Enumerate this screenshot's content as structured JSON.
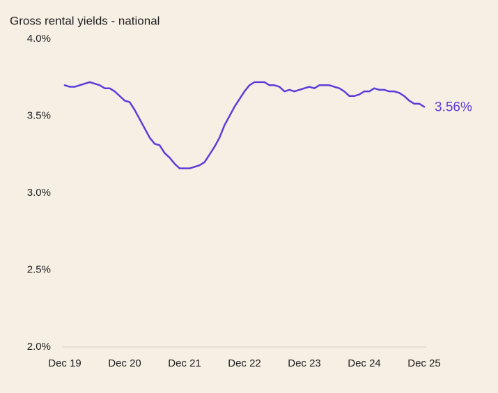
{
  "chart_data": {
    "type": "line",
    "title": "Gross rental yields - national",
    "categories": [
      "Dec 19",
      null,
      null,
      null,
      null,
      null,
      null,
      null,
      null,
      null,
      null,
      null,
      "Dec 20",
      null,
      null,
      null,
      null,
      null,
      null,
      null,
      null,
      null,
      null,
      null,
      "Dec 21",
      null,
      null,
      null,
      null,
      null,
      null,
      null,
      null,
      null,
      null,
      null,
      "Dec 22",
      null,
      null,
      null,
      null,
      null,
      null,
      null,
      null,
      null,
      null,
      null,
      "Dec 23",
      null,
      null,
      null,
      null,
      null,
      null,
      null,
      null,
      null,
      null,
      null,
      "Dec 24",
      null,
      null,
      null,
      null,
      null,
      null,
      null,
      null,
      null,
      null,
      null,
      "Dec 25"
    ],
    "series": [
      {
        "color": "#5a3dd8",
        "values": [
          3.7,
          3.69,
          3.69,
          3.7,
          3.71,
          3.72,
          3.71,
          3.7,
          3.68,
          3.68,
          3.66,
          3.63,
          3.6,
          3.59,
          3.54,
          3.48,
          3.42,
          3.36,
          3.32,
          3.31,
          3.26,
          3.23,
          3.19,
          3.16,
          3.16,
          3.16,
          3.17,
          3.18,
          3.2,
          3.25,
          3.3,
          3.36,
          3.44,
          3.5,
          3.56,
          3.61,
          3.66,
          3.7,
          3.72,
          3.72,
          3.72,
          3.7,
          3.7,
          3.69,
          3.66,
          3.67,
          3.66,
          3.67,
          3.68,
          3.69,
          3.68,
          3.7,
          3.7,
          3.7,
          3.69,
          3.68,
          3.66,
          3.63,
          3.63,
          3.64,
          3.66,
          3.66,
          3.68,
          3.67,
          3.67,
          3.66,
          3.66,
          3.65,
          3.63,
          3.6,
          3.58,
          3.58,
          3.56
        ],
        "value_labels": [
          null,
          null,
          null,
          null,
          null,
          null,
          null,
          null,
          null,
          null,
          null,
          null,
          null,
          null,
          null,
          null,
          null,
          null,
          null,
          null,
          null,
          null,
          null,
          null,
          null,
          null,
          null,
          null,
          null,
          null,
          null,
          null,
          null,
          null,
          null,
          null,
          null,
          null,
          null,
          null,
          null,
          null,
          null,
          null,
          null,
          null,
          null,
          null,
          null,
          null,
          null,
          null,
          null,
          null,
          null,
          null,
          null,
          null,
          null,
          null,
          null,
          null,
          null,
          null,
          null,
          null,
          null,
          null,
          null,
          null,
          null,
          null,
          "3.56%"
        ]
      }
    ],
    "ylim": [
      2.0,
      4.0
    ],
    "yticks": [
      {
        "value": 2.0,
        "label": "2.0%"
      },
      {
        "value": 2.5,
        "label": "2.5%"
      },
      {
        "value": 3.0,
        "label": "3.0%"
      },
      {
        "value": 3.5,
        "label": "3.5%"
      },
      {
        "value": 4.0,
        "label": "4.0%"
      }
    ],
    "grid": false
  }
}
